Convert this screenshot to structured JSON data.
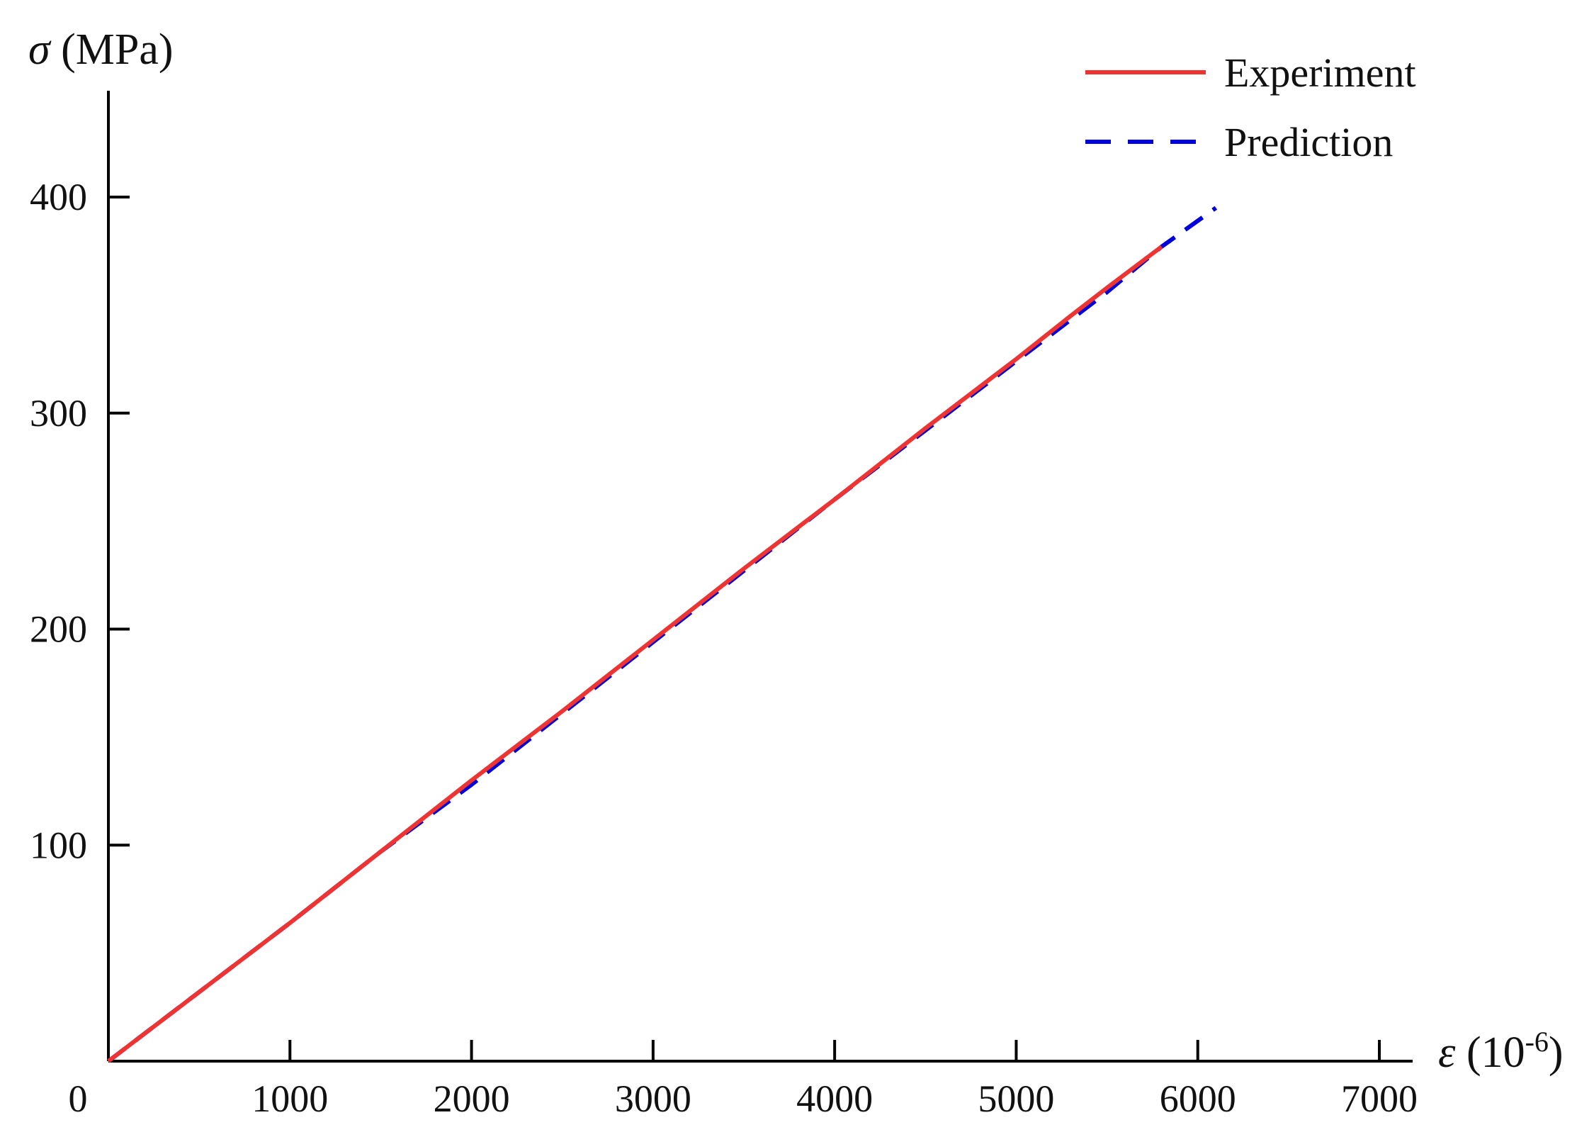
{
  "chart_data": {
    "type": "line",
    "xlabel": {
      "symbol": "ε",
      "unit_prefix": " (10",
      "unit_sup": "-6",
      "unit_suffix": ")"
    },
    "ylabel": {
      "symbol": "σ",
      "unit": " (MPa)"
    },
    "xlim": [
      0,
      7200
    ],
    "ylim": [
      0,
      450
    ],
    "origin_label": "0",
    "x_ticks": [
      1000,
      2000,
      3000,
      4000,
      5000,
      6000,
      7000
    ],
    "x_tick_labels": [
      "1000",
      "2000",
      "3000",
      "4000",
      "5000",
      "6000",
      "7000"
    ],
    "y_ticks": [
      100,
      200,
      300,
      400
    ],
    "y_tick_labels": [
      "100",
      "200",
      "300",
      "400"
    ],
    "grid": false,
    "legend_position": "top-right",
    "series": [
      {
        "name": "Experiment",
        "color": "#ee3333",
        "style": "solid",
        "x": [
          0,
          500,
          1000,
          1500,
          2000,
          2500,
          3000,
          3500,
          4000,
          4500,
          5000,
          5300,
          5500,
          5800
        ],
        "y": [
          0,
          32,
          64,
          97,
          130,
          162,
          195,
          228,
          260,
          293,
          325,
          345,
          358,
          377
        ]
      },
      {
        "name": "Prediction",
        "color": "#0000dd",
        "style": "dashed",
        "x": [
          0,
          500,
          1000,
          1500,
          2000,
          2500,
          3000,
          3500,
          4000,
          4500,
          5000,
          5500,
          5800,
          6100
        ],
        "y": [
          0,
          32,
          64,
          97,
          128,
          161,
          194,
          227,
          260,
          292,
          324,
          356,
          377,
          395
        ]
      }
    ]
  }
}
